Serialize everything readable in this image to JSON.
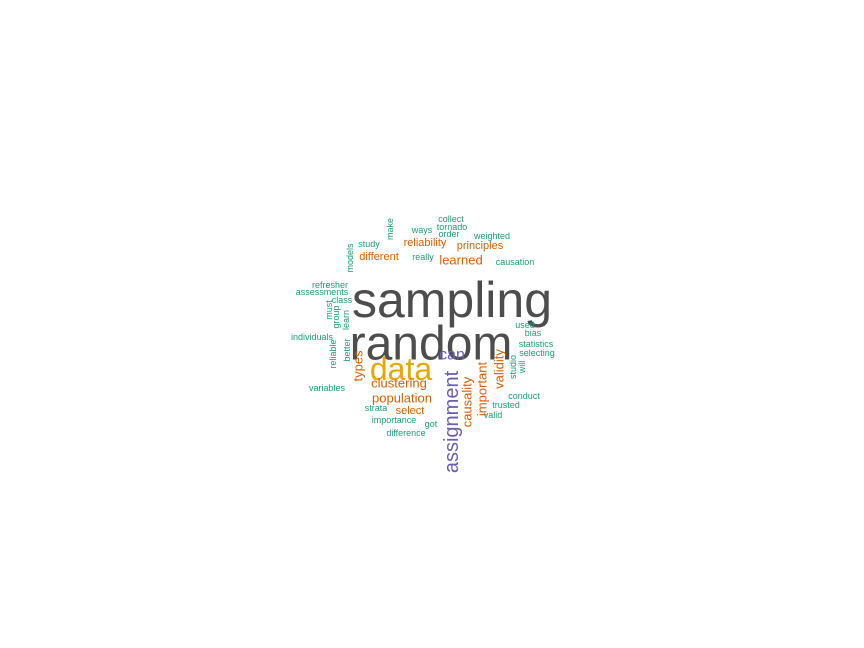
{
  "chart_data": {
    "type": "wordcloud",
    "colors": {
      "largest": "#4d4d4d",
      "large": "#e6a800",
      "medium": "#6a5fb0",
      "small": "#d95f02",
      "smallest": "#1b9e77"
    },
    "words": [
      {
        "text": "sampling",
        "group": "largest",
        "rotated": false
      },
      {
        "text": "random",
        "group": "largest",
        "rotated": false
      },
      {
        "text": "data",
        "group": "large",
        "rotated": false
      },
      {
        "text": "assignment",
        "group": "medium",
        "rotated": true
      },
      {
        "text": "can",
        "group": "medium",
        "rotated": false
      },
      {
        "text": "clustering",
        "group": "small",
        "rotated": false
      },
      {
        "text": "population",
        "group": "small",
        "rotated": false
      },
      {
        "text": "types",
        "group": "small",
        "rotated": true
      },
      {
        "text": "causality",
        "group": "small",
        "rotated": true
      },
      {
        "text": "important",
        "group": "small",
        "rotated": true
      },
      {
        "text": "validity",
        "group": "small",
        "rotated": true
      },
      {
        "text": "learned",
        "group": "small",
        "rotated": false
      },
      {
        "text": "reliability",
        "group": "small",
        "rotated": false
      },
      {
        "text": "principles",
        "group": "small",
        "rotated": false
      },
      {
        "text": "different",
        "group": "small",
        "rotated": false
      },
      {
        "text": "select",
        "group": "small",
        "rotated": false
      },
      {
        "text": "collect",
        "group": "smallest",
        "rotated": false
      },
      {
        "text": "tornado",
        "group": "smallest",
        "rotated": false
      },
      {
        "text": "ways",
        "group": "smallest",
        "rotated": false
      },
      {
        "text": "order",
        "group": "smallest",
        "rotated": false
      },
      {
        "text": "weighted",
        "group": "smallest",
        "rotated": false
      },
      {
        "text": "make",
        "group": "smallest",
        "rotated": true
      },
      {
        "text": "study",
        "group": "smallest",
        "rotated": false
      },
      {
        "text": "really",
        "group": "smallest",
        "rotated": false
      },
      {
        "text": "causation",
        "group": "smallest",
        "rotated": false
      },
      {
        "text": "models",
        "group": "smallest",
        "rotated": true
      },
      {
        "text": "refresher",
        "group": "smallest",
        "rotated": false
      },
      {
        "text": "assessments",
        "group": "smallest",
        "rotated": false
      },
      {
        "text": "class",
        "group": "smallest",
        "rotated": false
      },
      {
        "text": "must",
        "group": "smallest",
        "rotated": true
      },
      {
        "text": "group",
        "group": "smallest",
        "rotated": true
      },
      {
        "text": "learn",
        "group": "smallest",
        "rotated": true
      },
      {
        "text": "individuals",
        "group": "smallest",
        "rotated": false
      },
      {
        "text": "reliable",
        "group": "smallest",
        "rotated": true
      },
      {
        "text": "better",
        "group": "smallest",
        "rotated": true
      },
      {
        "text": "used",
        "group": "smallest",
        "rotated": false
      },
      {
        "text": "bias",
        "group": "smallest",
        "rotated": false
      },
      {
        "text": "statistics",
        "group": "smallest",
        "rotated": false
      },
      {
        "text": "selecting",
        "group": "smallest",
        "rotated": false
      },
      {
        "text": "studio",
        "group": "smallest",
        "rotated": true
      },
      {
        "text": "will",
        "group": "smallest",
        "rotated": true
      },
      {
        "text": "variables",
        "group": "smallest",
        "rotated": false
      },
      {
        "text": "conduct",
        "group": "smallest",
        "rotated": false
      },
      {
        "text": "trusted",
        "group": "smallest",
        "rotated": false
      },
      {
        "text": "valid",
        "group": "smallest",
        "rotated": false
      },
      {
        "text": "strata",
        "group": "smallest",
        "rotated": false
      },
      {
        "text": "importance",
        "group": "smallest",
        "rotated": false
      },
      {
        "text": "got",
        "group": "smallest",
        "rotated": false
      },
      {
        "text": "difference",
        "group": "smallest",
        "rotated": false
      }
    ]
  }
}
